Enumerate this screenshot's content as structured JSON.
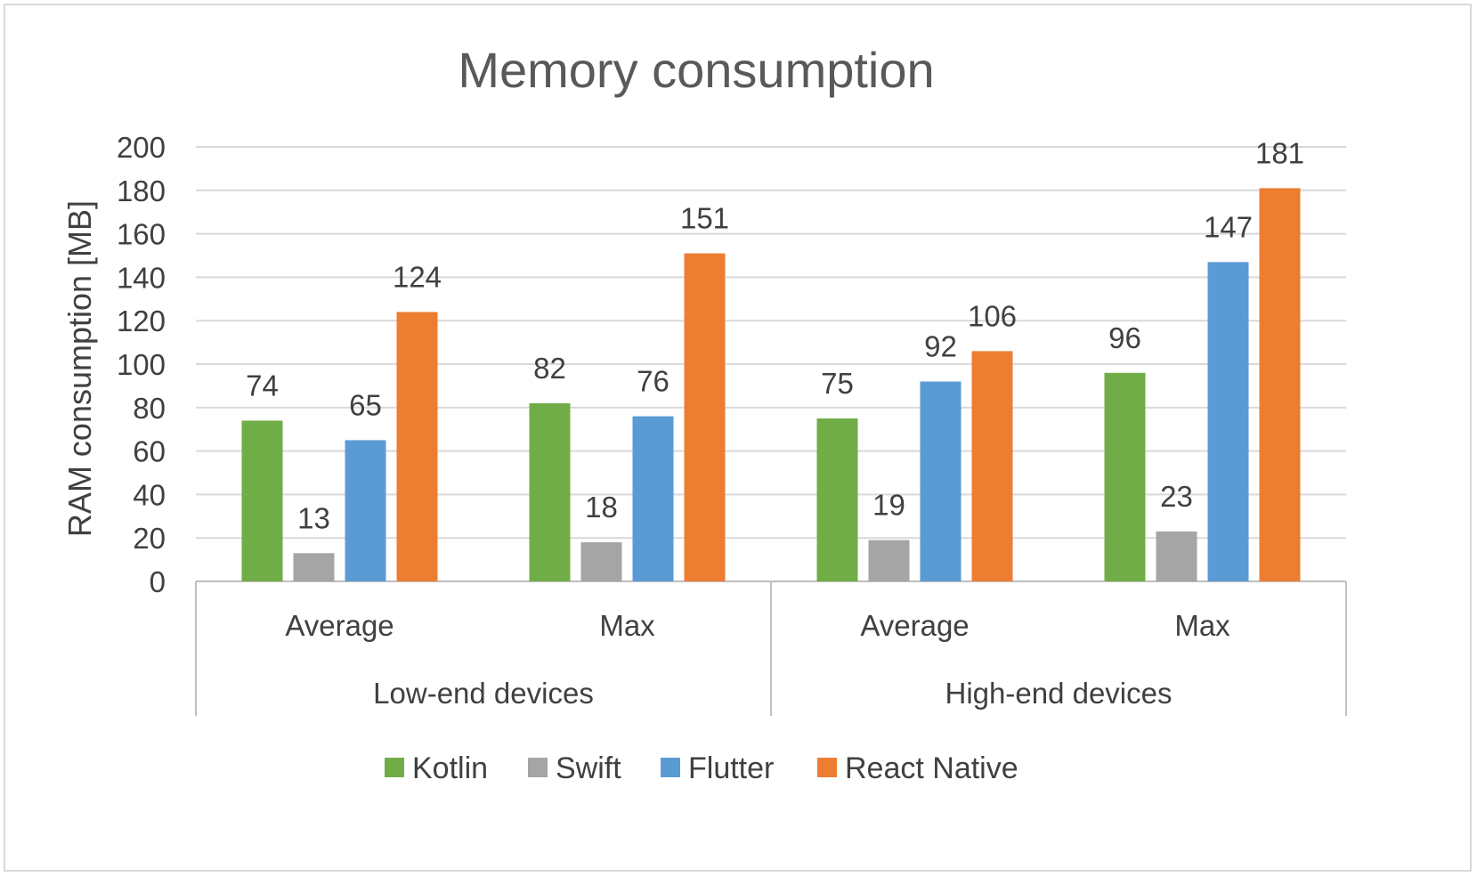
{
  "chart_data": {
    "type": "bar",
    "title": "Memory consumption",
    "xlabel": "",
    "ylabel": "RAM consumption [MB]",
    "ylim": [
      0,
      200
    ],
    "yticks": [
      0,
      20,
      40,
      60,
      80,
      100,
      120,
      140,
      160,
      180,
      200
    ],
    "grid": true,
    "legend_position": "bottom",
    "groups": [
      {
        "label": "Low-end devices",
        "categories": [
          "Average",
          "Max"
        ]
      },
      {
        "label": "High-end devices",
        "categories": [
          "Average",
          "Max"
        ]
      }
    ],
    "categories": [
      "Average",
      "Max",
      "Average",
      "Max"
    ],
    "series": [
      {
        "name": "Kotlin",
        "color": "#70ad47",
        "values": [
          74,
          82,
          75,
          96
        ]
      },
      {
        "name": "Swift",
        "color": "#a5a5a5",
        "values": [
          13,
          18,
          19,
          23
        ]
      },
      {
        "name": "Flutter",
        "color": "#5b9bd5",
        "values": [
          65,
          76,
          92,
          147
        ]
      },
      {
        "name": "React Native",
        "color": "#ed7d31",
        "values": [
          124,
          151,
          106,
          181
        ]
      }
    ]
  }
}
